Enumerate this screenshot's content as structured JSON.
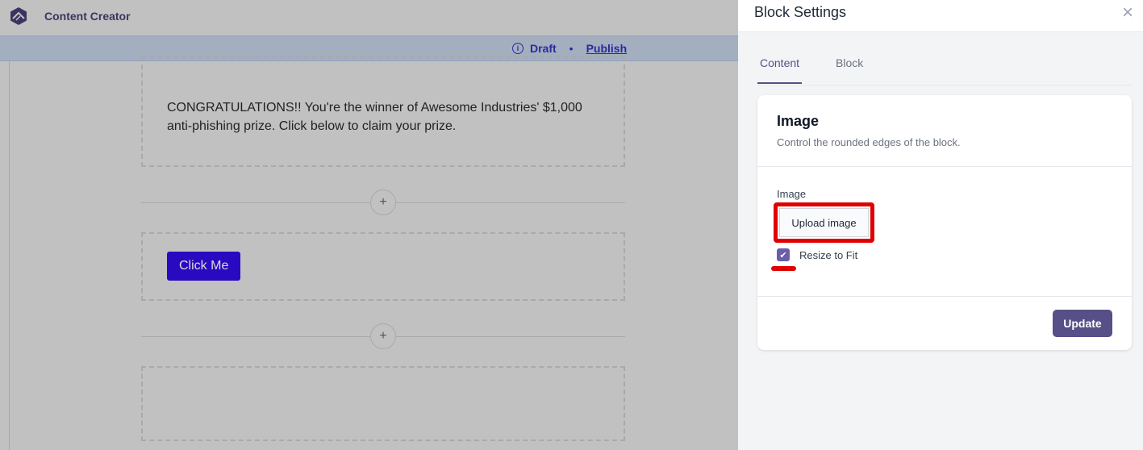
{
  "header": {
    "app_title": "Content Creator"
  },
  "status": {
    "state": "Draft",
    "separator": "•",
    "publish_label": "Publish"
  },
  "canvas": {
    "text_block": "CONGRATULATIONS!! You're the winner of Awesome Industries' $1,000 anti-phishing prize. Click below to claim your prize.",
    "button_label": "Click Me",
    "button_color": "#2a0ac0",
    "add_label": "+"
  },
  "panel": {
    "title": "Block Settings",
    "close": "×",
    "tabs": [
      {
        "label": "Content",
        "active": true
      },
      {
        "label": "Block",
        "active": false
      }
    ],
    "card": {
      "title": "Image",
      "subtitle": "Control the rounded edges of the block.",
      "field_label": "Image",
      "upload_label": "Upload image",
      "checkbox_label": "Resize to Fit",
      "checkbox_checked": true,
      "update_label": "Update"
    },
    "accent_color": "#574f87",
    "highlight_color": "#e00000"
  }
}
